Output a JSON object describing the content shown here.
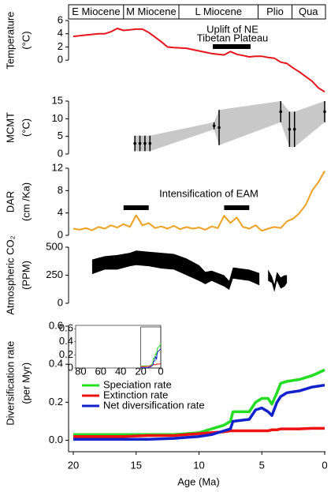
{
  "chart_data": [
    {
      "type": "line",
      "ylabel": [
        "Temperature",
        "(°C)"
      ],
      "xlim": [
        20,
        0
      ],
      "ylim": [
        -5,
        6
      ],
      "yticks": [
        0,
        2,
        4,
        6
      ],
      "color": "#e8141c",
      "x": [
        20,
        19,
        18,
        17.5,
        17,
        16.5,
        16,
        15.5,
        15,
        14.5,
        14,
        13.5,
        13,
        12.5,
        12,
        11,
        10,
        9.5,
        9,
        8.5,
        8,
        7.5,
        7,
        6.5,
        6,
        5.5,
        5,
        4.5,
        4,
        3.5,
        3,
        2.5,
        2,
        1.5,
        1,
        0.5,
        0
      ],
      "values": [
        3.6,
        3.8,
        4,
        4,
        4.3,
        4.8,
        4.5,
        4.6,
        4.7,
        4.7,
        4.2,
        3.5,
        2.8,
        2,
        1.9,
        1.8,
        1.4,
        1.2,
        1,
        0.9,
        0.8,
        1.3,
        0.9,
        0.7,
        0.5,
        0.6,
        0.6,
        0.4,
        0.3,
        -0.3,
        -0.5,
        -1.2,
        -1.8,
        -2.5,
        -3.2,
        -4.2,
        -4.8
      ],
      "epochs": [
        {
          "label": "E Miocene",
          "start": 20.4,
          "end": 16
        },
        {
          "label": "M Miocene",
          "start": 16,
          "end": 11.6
        },
        {
          "label": "L Miocene",
          "start": 11.6,
          "end": 5.3
        },
        {
          "label": "Plio",
          "start": 5.3,
          "end": 2.6
        },
        {
          "label": "Qua",
          "start": 2.6,
          "end": 0
        }
      ],
      "annotations": [
        {
          "text": [
            "Uplift of NE",
            "Tibetan Plateau"
          ],
          "spans": [
            [
              8.9,
              5.9
            ]
          ]
        }
      ]
    },
    {
      "type": "scatter",
      "ylabel": [
        "MCMT",
        "(°C)"
      ],
      "xlim": [
        20,
        0
      ],
      "ylim": [
        0,
        15
      ],
      "yticks": [
        0,
        5,
        10,
        15
      ],
      "color": "#000000",
      "band_color": "#c8c8c8",
      "x": [
        15.1,
        14.7,
        14.3,
        13.9,
        8.8,
        8.4,
        3.5,
        2.8,
        2.4,
        0
      ],
      "values": [
        3,
        3,
        3,
        3,
        8,
        7.5,
        12,
        7,
        7,
        12
      ],
      "errors": [
        2.2,
        2.2,
        2.2,
        2.2,
        1,
        5,
        3,
        5,
        5,
        3
      ]
    },
    {
      "type": "line",
      "ylabel": [
        "DAR",
        "(cm /Ka)"
      ],
      "xlim": [
        20,
        0
      ],
      "ylim": [
        0,
        12
      ],
      "yticks": [
        0,
        4,
        8,
        12
      ],
      "color": "#f0a020",
      "x": [
        20,
        19.5,
        19,
        18.5,
        18,
        17.5,
        17,
        16.5,
        16,
        15.5,
        15,
        14.5,
        14,
        13.5,
        13,
        12.5,
        12,
        11.5,
        11,
        10.5,
        10,
        9.5,
        9,
        8.5,
        8,
        7.5,
        7,
        6.5,
        6,
        5.5,
        5,
        4.5,
        4,
        3.5,
        3,
        2.5,
        2,
        1.5,
        1,
        0.5,
        0
      ],
      "values": [
        1.2,
        1,
        1.3,
        0.9,
        1.5,
        1.2,
        1.8,
        1.4,
        2,
        1.5,
        3.6,
        1.8,
        2.2,
        1.3,
        1.6,
        1.2,
        1.7,
        1.1,
        1.5,
        1.2,
        1.4,
        1,
        1.6,
        1.3,
        3.5,
        2.2,
        3.2,
        1.5,
        1.2,
        1.8,
        0.8,
        1.2,
        1.5,
        1.3,
        2.5,
        3,
        4,
        5.5,
        8,
        9.5,
        11.5
      ],
      "annotations": [
        {
          "text": [
            "Intensification of EAM"
          ],
          "spans": [
            [
              16,
              14
            ],
            [
              8,
              6
            ]
          ]
        }
      ]
    },
    {
      "type": "range",
      "ylabel": [
        "Atmospheric CO₂",
        "(PPM)"
      ],
      "xlim": [
        20,
        0
      ],
      "ylim": [
        0,
        500
      ],
      "yticks": [
        0,
        250,
        500
      ],
      "color": "#000000",
      "x": [
        18.5,
        17.5,
        16.5,
        15.5,
        15,
        14,
        13,
        12,
        11,
        10,
        9.5,
        9,
        8,
        7.6,
        7.3,
        6,
        5.2,
        5.0,
        4.5,
        4.2,
        4,
        3.8,
        3.5,
        3.2,
        3
      ],
      "low": [
        260,
        300,
        300,
        330,
        340,
        330,
        310,
        300,
        250,
        200,
        170,
        200,
        150,
        120,
        220,
        200,
        160,
        null,
        200,
        180,
        100,
        200,
        130,
        150,
        180
      ],
      "high": [
        390,
        420,
        430,
        450,
        470,
        460,
        450,
        440,
        400,
        340,
        280,
        290,
        250,
        200,
        320,
        300,
        270,
        null,
        300,
        240,
        170,
        280,
        230,
        250,
        250
      ]
    },
    {
      "type": "line",
      "ylabel": [
        "Diversification rate",
        "(per Myr)"
      ],
      "xlabel": "Age (Ma)",
      "xlim": [
        20,
        0
      ],
      "ylim": [
        -0.06,
        0.6
      ],
      "yticks": [
        {
          "value": 0,
          "label": "0.0"
        },
        0.2,
        0.4,
        0.6
      ],
      "xticks": [
        20,
        15,
        10,
        5,
        0
      ],
      "x": [
        20,
        18,
        16,
        14,
        12,
        11,
        10,
        9,
        8,
        7.5,
        7.3,
        6,
        5.5,
        5,
        4.5,
        4.2,
        3.8,
        3.5,
        3,
        2,
        1,
        0
      ],
      "series": [
        {
          "name": "Speciation rate",
          "color": "#22dd22",
          "values": [
            0.03,
            0.03,
            0.03,
            0.03,
            0.03,
            0.035,
            0.04,
            0.06,
            0.08,
            0.1,
            0.15,
            0.15,
            0.2,
            0.22,
            0.22,
            0.19,
            0.25,
            0.3,
            0.31,
            0.32,
            0.34,
            0.37
          ]
        },
        {
          "name": "Extinction rate",
          "color": "#ee1111",
          "values": [
            0.02,
            0.02,
            0.02,
            0.025,
            0.025,
            0.03,
            0.035,
            0.04,
            0.045,
            0.05,
            0.05,
            0.05,
            0.05,
            0.05,
            0.05,
            0.055,
            0.055,
            0.06,
            0.06,
            0.06,
            0.063,
            0.063
          ]
        },
        {
          "name": "Net diversification rate",
          "color": "#1122cc",
          "values": [
            0.005,
            0.005,
            0.005,
            0.005,
            0.01,
            0.015,
            0.02,
            0.03,
            0.05,
            0.06,
            0.1,
            0.11,
            0.16,
            0.17,
            0.15,
            0.13,
            0.2,
            0.23,
            0.25,
            0.26,
            0.28,
            0.29
          ]
        }
      ],
      "inset": {
        "xlim": [
          85,
          0
        ],
        "ylim": [
          0,
          0.65
        ],
        "xticks": [
          80,
          60,
          40,
          20,
          0
        ],
        "yticks": [
          0,
          0.2,
          0.4,
          0.6
        ]
      }
    }
  ]
}
